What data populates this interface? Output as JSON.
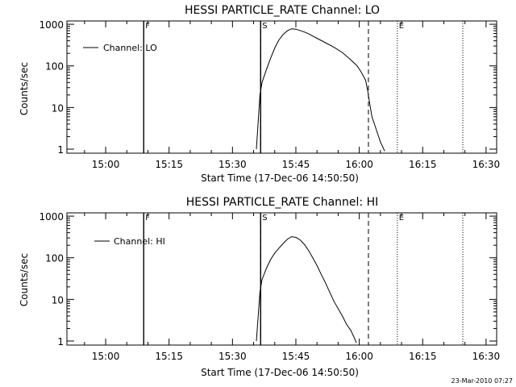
{
  "footer": {
    "timestamp": "23-Mar-2010 07:27"
  },
  "chart_data": [
    {
      "type": "line",
      "title": "HESSI PARTICLE_RATE Channel: LO",
      "xlabel": "Start Time (17-Dec-06 14:50:50)",
      "ylabel": "Counts/sec",
      "y_scale": "log",
      "xlim": [
        "14:50:50",
        "16:32:30"
      ],
      "ylim": [
        0.8,
        1200
      ],
      "x_ticks": [
        "15:00",
        "15:15",
        "15:30",
        "15:45",
        "16:00",
        "16:15",
        "16:30"
      ],
      "y_ticks": [
        "1",
        "10",
        "100",
        "1000"
      ],
      "legend": {
        "position": "top-left",
        "entries": [
          "Channel: LO"
        ]
      },
      "markers": [
        {
          "label": "F",
          "time": "15:09:00",
          "style": "solid"
        },
        {
          "label": "S",
          "time": "15:36:40",
          "style": "solid"
        },
        {
          "label": "",
          "time": "15:36:40",
          "style": "dashed"
        },
        {
          "label": "",
          "time": "16:02:10",
          "style": "dashed"
        },
        {
          "label": "E",
          "time": "16:09:00",
          "style": "dotted"
        },
        {
          "label": "",
          "time": "16:24:30",
          "style": "dotted"
        }
      ],
      "series": [
        {
          "name": "Channel: LO",
          "x": [
            "15:35:40",
            "15:36:30",
            "15:37:00",
            "15:38:00",
            "15:39:00",
            "15:40:00",
            "15:41:00",
            "15:42:00",
            "15:43:00",
            "15:44:00",
            "15:45:00",
            "15:46:00",
            "15:47:00",
            "15:48:00",
            "15:50:00",
            "15:52:00",
            "15:54:00",
            "15:56:00",
            "15:58:00",
            "15:59:30",
            "16:00:30",
            "16:01:30",
            "16:02:00",
            "16:02:30",
            "16:03:00",
            "16:04:00",
            "16:05:00",
            "16:06:00"
          ],
          "y": [
            1,
            20,
            40,
            80,
            150,
            270,
            420,
            570,
            700,
            780,
            760,
            710,
            650,
            590,
            460,
            360,
            280,
            210,
            140,
            100,
            70,
            45,
            25,
            12,
            6,
            3,
            1.5,
            0.9
          ]
        }
      ]
    },
    {
      "type": "line",
      "title": "HESSI PARTICLE_RATE Channel: HI",
      "xlabel": "Start Time (17-Dec-06 14:50:50)",
      "ylabel": "Counts/sec",
      "y_scale": "log",
      "xlim": [
        "14:50:50",
        "16:32:30"
      ],
      "ylim": [
        0.8,
        1200
      ],
      "x_ticks": [
        "15:00",
        "15:15",
        "15:30",
        "15:45",
        "16:00",
        "16:15",
        "16:30"
      ],
      "y_ticks": [
        "1",
        "10",
        "100",
        "1000"
      ],
      "legend": {
        "position": "top-left",
        "entries": [
          "Channel: HI"
        ]
      },
      "markers": [
        {
          "label": "F",
          "time": "15:09:00",
          "style": "solid"
        },
        {
          "label": "S",
          "time": "15:36:40",
          "style": "solid"
        },
        {
          "label": "",
          "time": "15:36:40",
          "style": "dashed"
        },
        {
          "label": "",
          "time": "16:02:10",
          "style": "dashed"
        },
        {
          "label": "E",
          "time": "16:09:00",
          "style": "dotted"
        },
        {
          "label": "",
          "time": "16:24:30",
          "style": "dotted"
        }
      ],
      "series": [
        {
          "name": "Channel: HI",
          "x": [
            "15:35:40",
            "15:36:30",
            "15:37:00",
            "15:38:00",
            "15:39:00",
            "15:40:00",
            "15:41:00",
            "15:42:00",
            "15:43:00",
            "15:44:00",
            "15:45:00",
            "15:46:00",
            "15:47:00",
            "15:48:00",
            "15:49:00",
            "15:50:00",
            "15:51:00",
            "15:52:00",
            "15:53:00",
            "15:54:00",
            "15:55:00",
            "15:56:00",
            "15:57:00",
            "15:58:00",
            "15:58:40",
            "15:59:20"
          ],
          "y": [
            1,
            15,
            30,
            55,
            90,
            130,
            170,
            220,
            280,
            320,
            310,
            270,
            210,
            150,
            100,
            65,
            40,
            25,
            15,
            9,
            6,
            4,
            2.5,
            1.8,
            1.3,
            0.9
          ]
        }
      ]
    }
  ]
}
